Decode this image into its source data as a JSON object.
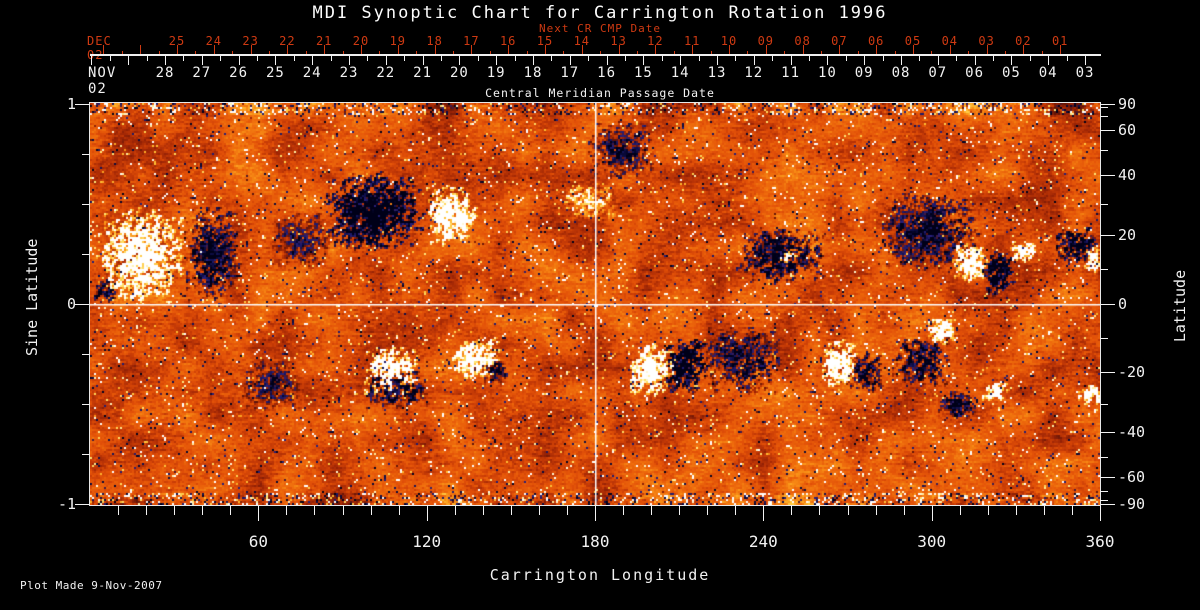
{
  "title": "MDI Synoptic Chart for Carrington Rotation 1996",
  "colors": {
    "background": "#000000",
    "foreground": "#f2f2f2",
    "accent_red": "#cf3a12",
    "map_base_orange": "#e25008",
    "map_negative_navy": "#1c1c6e",
    "map_positive_white": "#ffffff"
  },
  "axes": {
    "top_red": {
      "sub_label": "Next CR CMP Date",
      "month_label": "DEC 02",
      "days": [
        "25",
        "24",
        "23",
        "22",
        "21",
        "20",
        "19",
        "18",
        "17",
        "16",
        "15",
        "14",
        "13",
        "12",
        "11",
        "10",
        "09",
        "08",
        "07",
        "06",
        "05",
        "04",
        "03",
        "02",
        "01"
      ]
    },
    "top_white": {
      "axis_label": "Central Meridian Passage Date",
      "month_label": "NOV 02",
      "days": [
        "28",
        "27",
        "26",
        "25",
        "24",
        "23",
        "22",
        "21",
        "20",
        "19",
        "18",
        "17",
        "16",
        "15",
        "14",
        "13",
        "12",
        "11",
        "10",
        "09",
        "08",
        "07",
        "06",
        "05",
        "04",
        "03"
      ]
    },
    "left": {
      "label": "Sine Latitude",
      "major_ticks": [
        1,
        0,
        -1
      ],
      "minor_tick_step": 0.25,
      "range": [
        -1,
        1
      ]
    },
    "right": {
      "label": "Latitude",
      "major_ticks": [
        90,
        60,
        40,
        20,
        0,
        -20,
        -40,
        -60,
        -90
      ],
      "minor_ticks": [
        80,
        70,
        50,
        30,
        10,
        -10,
        -30,
        -50,
        -70,
        -80
      ]
    },
    "bottom": {
      "label": "Carrington Longitude",
      "major_ticks": [
        60,
        120,
        180,
        240,
        300,
        360
      ],
      "minor_tick_step": 10,
      "range": [
        0,
        360
      ]
    }
  },
  "footer": {
    "plot_made": "Plot Made  9-Nov-2007"
  },
  "chart_data": {
    "type": "heatmap",
    "title": "MDI Synoptic Chart for Carrington Rotation 1996",
    "xlabel": "Carrington Longitude",
    "ylabel_left": "Sine Latitude",
    "ylabel_right": "Latitude",
    "x_range_deg": [
      0,
      360
    ],
    "sine_latitude_range": [
      -1,
      1
    ],
    "grid": {
      "vertical_line_lon": 180,
      "horizontal_line_sine_lat": 0
    },
    "colormap": "orange magnetogram: strong negative = navy/black, weak = orange-red, strong positive = yellow/white",
    "polar_noise_bands": true,
    "active_regions": [
      {
        "lon": 18,
        "sine_lat": 0.25,
        "polarity": 1,
        "rlon": 16,
        "rsine": 0.24,
        "strength": 1.1
      },
      {
        "lon": 43,
        "sine_lat": 0.25,
        "polarity": -1,
        "rlon": 10,
        "rsine": 0.25,
        "strength": 0.7
      },
      {
        "lon": 5,
        "sine_lat": 0.07,
        "polarity": -1,
        "rlon": 4,
        "rsine": 0.06,
        "strength": 0.9
      },
      {
        "lon": 101,
        "sine_lat": 0.47,
        "polarity": -1,
        "rlon": 18,
        "rsine": 0.2,
        "strength": 1.2
      },
      {
        "lon": 128,
        "sine_lat": 0.45,
        "polarity": 1,
        "rlon": 9,
        "rsine": 0.15,
        "strength": 1.1
      },
      {
        "lon": 132,
        "sine_lat": 0.43,
        "polarity": 1,
        "rlon": 2.5,
        "rsine": 0.05,
        "strength": 2.0
      },
      {
        "lon": 107,
        "sine_lat": -0.33,
        "polarity": 1,
        "rlon": 10,
        "rsine": 0.13,
        "strength": 1.1
      },
      {
        "lon": 109,
        "sine_lat": -0.41,
        "polarity": -1,
        "rlon": 12,
        "rsine": 0.11,
        "strength": 0.7
      },
      {
        "lon": 137,
        "sine_lat": -0.26,
        "polarity": 1,
        "rlon": 9,
        "rsine": 0.11,
        "strength": 1.0
      },
      {
        "lon": 144,
        "sine_lat": -0.33,
        "polarity": -1,
        "rlon": 5,
        "rsine": 0.06,
        "strength": 0.8
      },
      {
        "lon": 189,
        "sine_lat": 0.77,
        "polarity": -1,
        "rlon": 12,
        "rsine": 0.14,
        "strength": 0.5
      },
      {
        "lon": 178,
        "sine_lat": 0.52,
        "polarity": 1,
        "rlon": 10,
        "rsine": 0.1,
        "strength": 0.45
      },
      {
        "lon": 200,
        "sine_lat": -0.32,
        "polarity": 1,
        "rlon": 8,
        "rsine": 0.13,
        "strength": 1.4
      },
      {
        "lon": 212,
        "sine_lat": -0.3,
        "polarity": -1,
        "rlon": 8,
        "rsine": 0.14,
        "strength": 1.3
      },
      {
        "lon": 232,
        "sine_lat": -0.28,
        "polarity": -1,
        "rlon": 14,
        "rsine": 0.17,
        "strength": 0.6
      },
      {
        "lon": 246,
        "sine_lat": 0.25,
        "polarity": -1,
        "rlon": 16,
        "rsine": 0.14,
        "strength": 0.8
      },
      {
        "lon": 249,
        "sine_lat": 0.25,
        "polarity": 1,
        "rlon": 3.5,
        "rsine": 0.04,
        "strength": 1.2
      },
      {
        "lon": 267,
        "sine_lat": -0.29,
        "polarity": 1,
        "rlon": 6.5,
        "rsine": 0.12,
        "strength": 1.3
      },
      {
        "lon": 276,
        "sine_lat": -0.33,
        "polarity": -1,
        "rlon": 6.5,
        "rsine": 0.1,
        "strength": 0.8
      },
      {
        "lon": 299,
        "sine_lat": 0.37,
        "polarity": -1,
        "rlon": 18,
        "rsine": 0.2,
        "strength": 0.6
      },
      {
        "lon": 313,
        "sine_lat": 0.21,
        "polarity": 1,
        "rlon": 6.5,
        "rsine": 0.1,
        "strength": 1.2
      },
      {
        "lon": 323,
        "sine_lat": 0.17,
        "polarity": -1,
        "rlon": 5.5,
        "rsine": 0.12,
        "strength": 1.1
      },
      {
        "lon": 332,
        "sine_lat": 0.27,
        "polarity": 1,
        "rlon": 5,
        "rsine": 0.05,
        "strength": 1.1
      },
      {
        "lon": 351,
        "sine_lat": 0.3,
        "polarity": -1,
        "rlon": 8,
        "rsine": 0.09,
        "strength": 1.0
      },
      {
        "lon": 357,
        "sine_lat": 0.23,
        "polarity": 1,
        "rlon": 3.5,
        "rsine": 0.07,
        "strength": 1.0
      },
      {
        "lon": 303,
        "sine_lat": -0.13,
        "polarity": 1,
        "rlon": 5.5,
        "rsine": 0.07,
        "strength": 1.1
      },
      {
        "lon": 296,
        "sine_lat": -0.28,
        "polarity": -1,
        "rlon": 11,
        "rsine": 0.13,
        "strength": 0.7
      },
      {
        "lon": 322,
        "sine_lat": -0.43,
        "polarity": 1,
        "rlon": 4.5,
        "rsine": 0.05,
        "strength": 1.2
      },
      {
        "lon": 309,
        "sine_lat": -0.5,
        "polarity": -1,
        "rlon": 7,
        "rsine": 0.07,
        "strength": 0.8
      },
      {
        "lon": 356,
        "sine_lat": -0.44,
        "polarity": 1,
        "rlon": 5,
        "rsine": 0.05,
        "strength": 1.2
      },
      {
        "lon": 64,
        "sine_lat": -0.4,
        "polarity": -1,
        "rlon": 11,
        "rsine": 0.13,
        "strength": 0.4
      },
      {
        "lon": 75,
        "sine_lat": 0.32,
        "polarity": -1,
        "rlon": 11,
        "rsine": 0.15,
        "strength": 0.35
      }
    ]
  }
}
